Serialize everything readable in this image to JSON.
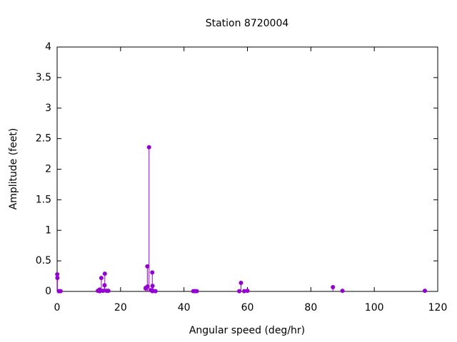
{
  "chart_data": {
    "type": "impulse",
    "title": "Station 8720004",
    "x_label": "Angular speed (deg/hr)",
    "y_label": "Amplitude (feet)",
    "color": "#9400d3",
    "x": [
      0.041,
      0.082,
      0.544,
      1.098,
      12.85,
      13.4,
      13.47,
      13.94,
      14.5,
      14.96,
      15.04,
      15.59,
      16.14,
      27.9,
      27.97,
      28.44,
      28.51,
      28.98,
      29.53,
      29.96,
      30.0,
      30.04,
      30.08,
      31.02,
      42.93,
      43.48,
      44.03,
      57.42,
      57.97,
      58.98,
      60.0,
      86.95,
      89.96,
      115.94
    ],
    "values": [
      0.28,
      0.22,
      0.005,
      0.005,
      0.01,
      0.03,
      0.005,
      0.22,
      0.01,
      0.1,
      0.29,
      0.01,
      0.01,
      0.05,
      0.06,
      0.41,
      0.08,
      2.36,
      0.02,
      0.02,
      0.31,
      0.005,
      0.09,
      0.005,
      0.005,
      0.005,
      0.005,
      0.005,
      0.14,
      0.005,
      0.01,
      0.07,
      0.01,
      0.01
    ],
    "xlim": [
      0,
      120
    ],
    "xticks": [
      0,
      20,
      40,
      60,
      80,
      100,
      120
    ],
    "ylim": [
      0,
      4
    ],
    "yticks": [
      0,
      0.5,
      1,
      1.5,
      2,
      2.5,
      3,
      3.5,
      4
    ]
  }
}
